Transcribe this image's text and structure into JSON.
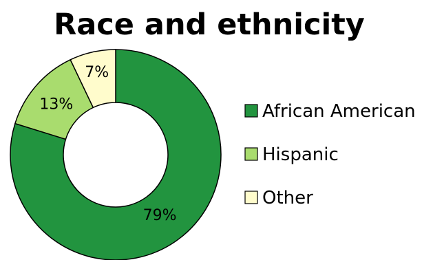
{
  "chart_data": {
    "type": "pie",
    "variant": "donut",
    "title": "Race and ethnicity",
    "labels": [
      "African American",
      "Hispanic",
      "Other"
    ],
    "values": [
      79,
      13,
      7
    ],
    "value_labels": [
      "79%",
      "13%",
      "7%"
    ],
    "colors": [
      "#22943f",
      "#a9dc6e",
      "#fffccc"
    ],
    "legend_position": "right"
  }
}
